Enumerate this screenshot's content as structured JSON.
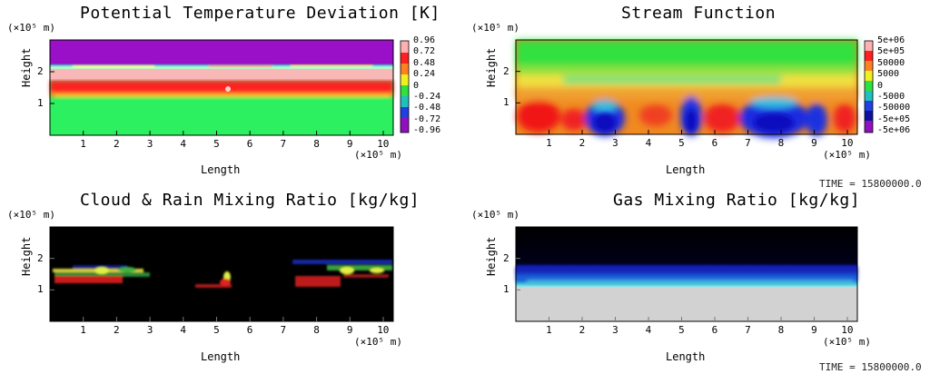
{
  "chart_data": [
    {
      "type": "heatmap",
      "title": "Potential Temperature Deviation [K]",
      "xlabel": "Length",
      "ylabel": "Height",
      "x_unit": "(×10⁵ m)",
      "y_unit": "(×10⁵ m)",
      "xticks": [
        "1",
        "2",
        "3",
        "4",
        "5",
        "6",
        "7",
        "8",
        "9",
        "10"
      ],
      "yticks": [
        "1",
        "2"
      ],
      "xlim": [
        0,
        10.3
      ],
      "ylim": [
        0,
        3
      ],
      "colorbar": [
        "0.96",
        "0.72",
        "0.48",
        "0.24",
        "0",
        "-0.24",
        "-0.48",
        "-0.72",
        "-0.96"
      ],
      "time_text": ""
    },
    {
      "type": "heatmap",
      "title": "Stream Function",
      "xlabel": "Length",
      "ylabel": "Height",
      "x_unit": "(×10⁵ m)",
      "y_unit": "(×10⁵ m)",
      "xticks": [
        "1",
        "2",
        "3",
        "4",
        "5",
        "6",
        "7",
        "8",
        "9",
        "10"
      ],
      "yticks": [
        "1",
        "2"
      ],
      "xlim": [
        0,
        10.3
      ],
      "ylim": [
        0,
        3
      ],
      "colorbar": [
        "5e+06",
        "5e+05",
        "50000",
        "5000",
        "0",
        "-5000",
        "-50000",
        "-5e+05",
        "-5e+06"
      ],
      "time_text": "TIME = 15800000.0"
    },
    {
      "type": "heatmap",
      "title": "Cloud & Rain Mixing Ratio [kg/kg]",
      "xlabel": "Length",
      "ylabel": "Height",
      "x_unit": "(×10⁵ m)",
      "y_unit": "(×10⁵ m)",
      "xticks": [
        "1",
        "2",
        "3",
        "4",
        "5",
        "6",
        "7",
        "8",
        "9",
        "10"
      ],
      "yticks": [
        "1",
        "2"
      ],
      "xlim": [
        0,
        10.3
      ],
      "ylim": [
        0,
        3
      ],
      "colorbar": [],
      "time_text": ""
    },
    {
      "type": "heatmap",
      "title": "Gas Mixing Ratio [kg/kg]",
      "xlabel": "Length",
      "ylabel": "Height",
      "x_unit": "(×10⁵ m)",
      "y_unit": "(×10⁵ m)",
      "xticks": [
        "1",
        "2",
        "3",
        "4",
        "5",
        "6",
        "7",
        "8",
        "9",
        "10"
      ],
      "yticks": [
        "1",
        "2"
      ],
      "xlim": [
        0,
        10.3
      ],
      "ylim": [
        0,
        3
      ],
      "colorbar": [],
      "time_text": "TIME = 15800000.0"
    }
  ]
}
